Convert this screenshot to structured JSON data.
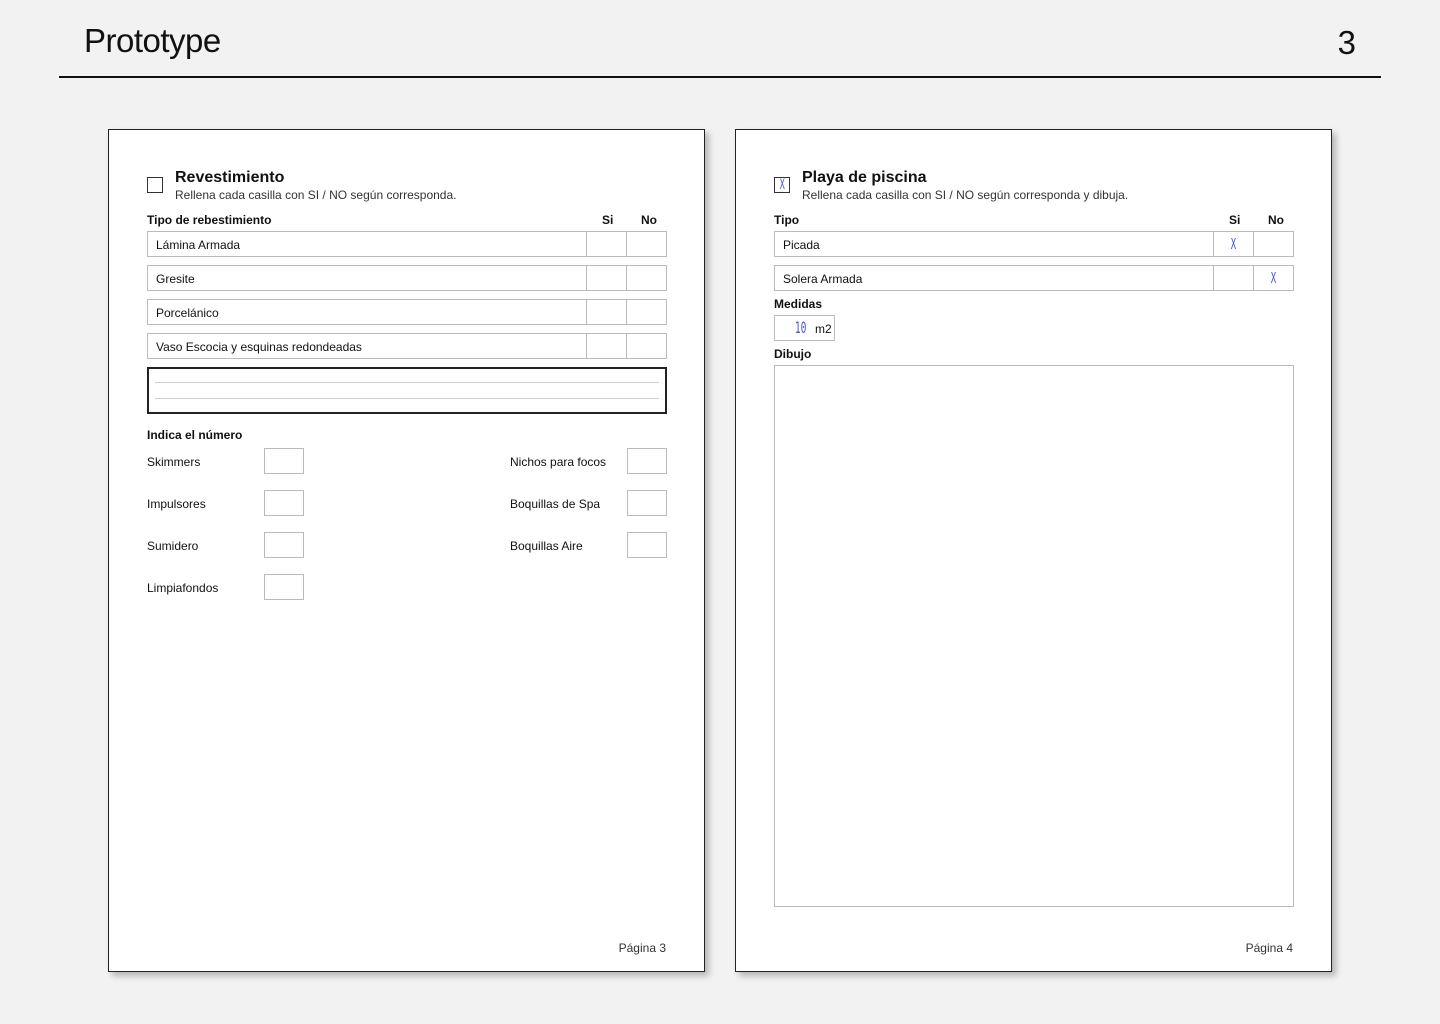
{
  "header": {
    "title": "Prototype",
    "page_number": "3"
  },
  "page_left": {
    "checked": false,
    "title": "Revestimiento",
    "subtitle": "Rellena cada casilla con SI / NO según corresponda.",
    "column_label": "Tipo de rebestimiento",
    "si_label": "Si",
    "no_label": "No",
    "rows": [
      {
        "label": "Lámina Armada",
        "si": "",
        "no": ""
      },
      {
        "label": "Gresite",
        "si": "",
        "no": ""
      },
      {
        "label": "Porcelánico",
        "si": "",
        "no": ""
      },
      {
        "label": "Vaso Escocia y esquinas redondeadas",
        "si": "",
        "no": ""
      }
    ],
    "count_label": "Indica el número",
    "counts_left": [
      {
        "label": "Skimmers",
        "value": ""
      },
      {
        "label": "Impulsores",
        "value": ""
      },
      {
        "label": "Sumidero",
        "value": ""
      },
      {
        "label": "Limpiafondos",
        "value": ""
      }
    ],
    "counts_right": [
      {
        "label": "Nichos para focos",
        "value": ""
      },
      {
        "label": "Boquillas de Spa",
        "value": ""
      },
      {
        "label": "Boquillas Aire",
        "value": ""
      }
    ],
    "footer": "Página 3"
  },
  "page_right": {
    "checked": true,
    "check_mark": "X",
    "title": "Playa de piscina",
    "subtitle": "Rellena cada casilla con SI / NO según corresponda y dibuja.",
    "column_label": "Tipo",
    "si_label": "Si",
    "no_label": "No",
    "rows": [
      {
        "label": "Picada",
        "si": "X",
        "no": ""
      },
      {
        "label": "Solera Armada",
        "si": "",
        "no": "X"
      }
    ],
    "measures_label": "Medidas",
    "measures_value": "10",
    "measures_unit": "m2",
    "drawing_label": "Dibujo",
    "footer": "Página 4"
  },
  "colors": {
    "handwriting": "#4b52d6"
  }
}
